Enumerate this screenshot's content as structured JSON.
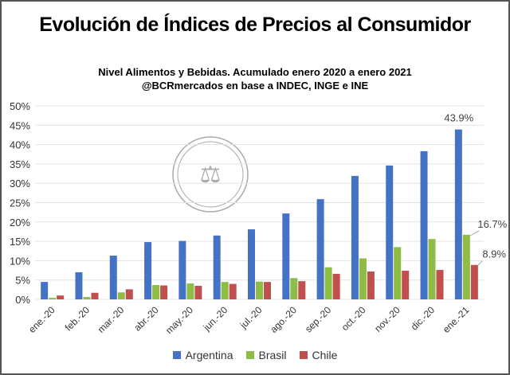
{
  "chart_data": {
    "type": "bar",
    "title": "Evolución de Índices de Precios al Consumidor",
    "subtitle": [
      "Nivel Alimentos y Bebidas. Acumulado enero 2020 a enero 2021",
      "@BCRmercados en base a INDEC, INGE e INE"
    ],
    "categories": [
      "ene.-20",
      "feb.-20",
      "mar.-20",
      "abr.-20",
      "may.-20",
      "jun.-20",
      "jul.-20",
      "ago.-20",
      "sep.-20",
      "oct.-20",
      "nov.-20",
      "dic.-20",
      "ene.-21"
    ],
    "series": [
      {
        "name": "Argentina",
        "color": "#4472c4",
        "values": [
          4.5,
          7.0,
          11.3,
          14.8,
          15.1,
          16.5,
          18.1,
          22.2,
          25.9,
          31.9,
          34.6,
          38.3,
          43.9
        ]
      },
      {
        "name": "Brasil",
        "color": "#8fbc45",
        "values": [
          0.4,
          0.6,
          1.8,
          3.7,
          4.1,
          4.5,
          4.6,
          5.5,
          8.3,
          10.6,
          13.5,
          15.6,
          16.7
        ]
      },
      {
        "name": "Chile",
        "color": "#c0504d",
        "values": [
          1.0,
          1.7,
          2.6,
          3.6,
          3.5,
          4.0,
          4.5,
          4.7,
          6.6,
          7.2,
          7.4,
          7.6,
          8.9
        ]
      }
    ],
    "data_labels": [
      "43.9%",
      "16.7%",
      "8.9%"
    ],
    "yticks": [
      "0%",
      "5%",
      "10%",
      "15%",
      "20%",
      "25%",
      "30%",
      "35%",
      "40%",
      "45%",
      "50%"
    ],
    "ylim": [
      0,
      50
    ],
    "grid": true,
    "legend": "bottom",
    "watermark": "BOLSA DE COMERCIO DE ROSARIO"
  }
}
